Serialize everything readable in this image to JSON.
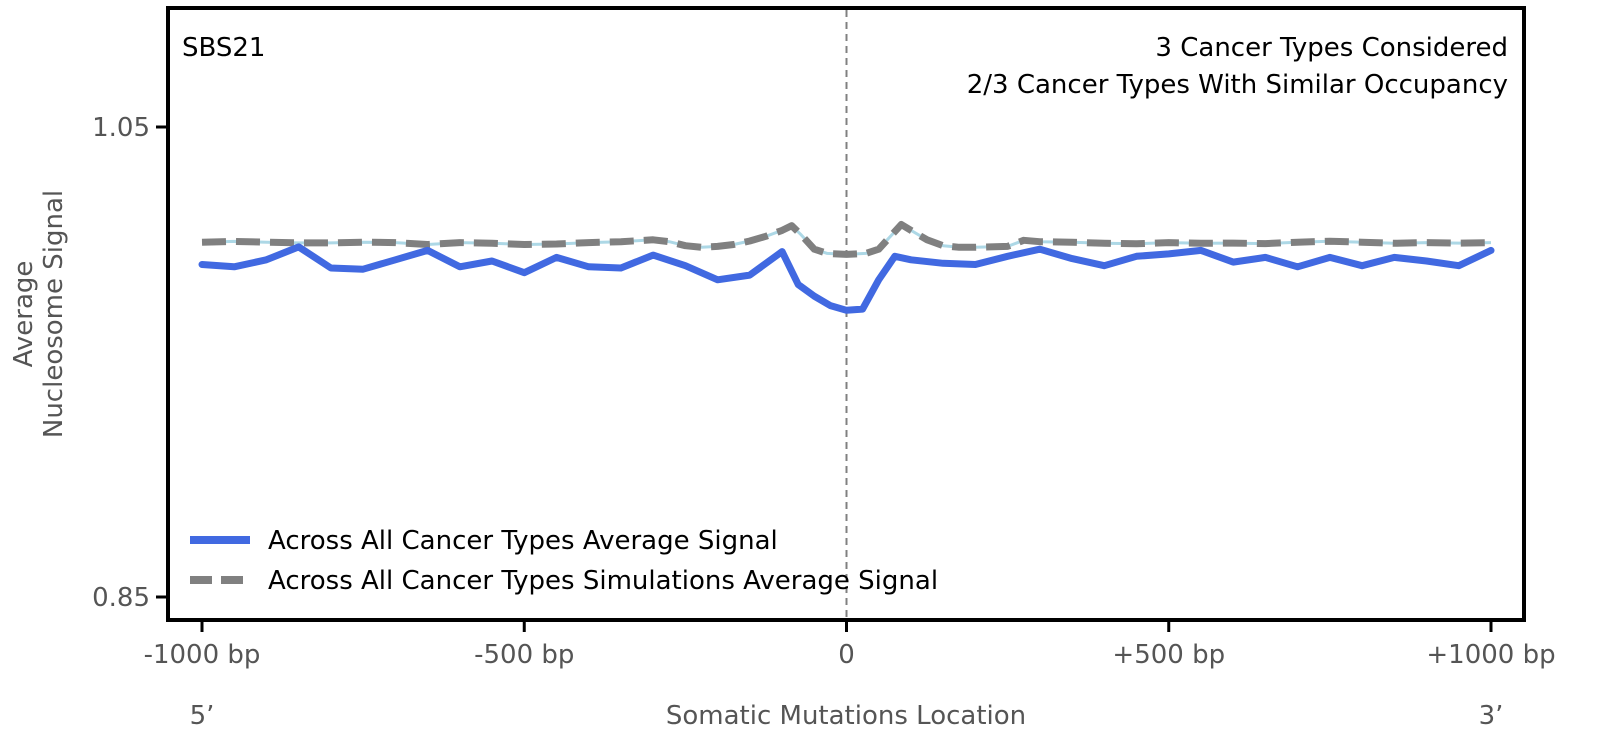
{
  "chart_data": {
    "type": "line",
    "panel_label": "SBS21",
    "annotation_line1": "3 Cancer Types Considered",
    "annotation_line2": "2/3 Cancer Types With Similar Occupancy",
    "ylabel_line1": "Average",
    "ylabel_line2": "Nucleosome Signal",
    "xlabel": "Somatic Mutations Location",
    "x_end_left": "5’",
    "x_end_right": "3’",
    "xlim": [
      -1000,
      1000
    ],
    "ylim": [
      0.85,
      1.05
    ],
    "xticks": [
      {
        "value": -1000,
        "label": "-1000 bp"
      },
      {
        "value": -500,
        "label": "-500 bp"
      },
      {
        "value": 0,
        "label": "0"
      },
      {
        "value": 500,
        "label": "+500 bp"
      },
      {
        "value": 1000,
        "label": "+1000 bp"
      }
    ],
    "yticks": [
      {
        "value": 1.05,
        "label": "1.05"
      },
      {
        "value": 0.85,
        "label": "0.85"
      }
    ],
    "legend_position": "lower-left",
    "series": [
      {
        "name": "Across All Cancer Types Average Signal",
        "color": "#4169e1",
        "style": "solid",
        "x": [
          -1000,
          -950,
          -900,
          -850,
          -800,
          -750,
          -700,
          -650,
          -600,
          -550,
          -500,
          -450,
          -400,
          -350,
          -300,
          -250,
          -200,
          -150,
          -100,
          -75,
          -50,
          -25,
          0,
          25,
          50,
          75,
          100,
          150,
          200,
          250,
          300,
          350,
          400,
          450,
          500,
          550,
          600,
          650,
          700,
          750,
          800,
          850,
          900,
          950,
          1000
        ],
        "y": [
          0.9915,
          0.9905,
          0.9935,
          0.999,
          0.99,
          0.9895,
          0.9935,
          0.9975,
          0.9905,
          0.993,
          0.988,
          0.9945,
          0.9905,
          0.99,
          0.9955,
          0.991,
          0.985,
          0.987,
          0.997,
          0.983,
          0.978,
          0.974,
          0.972,
          0.9725,
          0.985,
          0.995,
          0.9935,
          0.992,
          0.9915,
          0.995,
          0.998,
          0.994,
          0.991,
          0.995,
          0.996,
          0.9975,
          0.9925,
          0.9945,
          0.9905,
          0.9945,
          0.991,
          0.9945,
          0.993,
          0.991,
          0.9975
        ]
      },
      {
        "name": "Across All Cancer Types Simulations Average Signal",
        "color": "#808080",
        "style": "dashed",
        "x": [
          -1000,
          -950,
          -900,
          -850,
          -800,
          -750,
          -700,
          -650,
          -600,
          -550,
          -500,
          -450,
          -400,
          -350,
          -300,
          -275,
          -250,
          -225,
          -200,
          -175,
          -150,
          -125,
          -100,
          -85,
          -70,
          -50,
          -30,
          0,
          30,
          50,
          70,
          85,
          100,
          125,
          150,
          175,
          200,
          250,
          275,
          300,
          350,
          400,
          450,
          500,
          550,
          600,
          650,
          700,
          750,
          800,
          850,
          900,
          950,
          1000
        ],
        "y": [
          1.001,
          1.0013,
          1.001,
          1.0007,
          1.0007,
          1.001,
          1.0008,
          1.0,
          1.0008,
          1.0005,
          1.0,
          1.0002,
          1.0008,
          1.0012,
          1.002,
          1.0012,
          0.9995,
          0.9988,
          0.9992,
          1.0,
          1.0015,
          1.0035,
          1.006,
          1.008,
          1.004,
          0.998,
          0.9962,
          0.9958,
          0.9962,
          0.998,
          1.004,
          1.0085,
          1.006,
          1.002,
          0.9995,
          0.9988,
          0.9988,
          0.9992,
          1.0018,
          1.0012,
          1.001,
          1.0005,
          1.0003,
          1.0008,
          1.0005,
          1.0006,
          1.0004,
          1.001,
          1.0014,
          1.001,
          1.0005,
          1.0008,
          1.0006,
          1.0008
        ]
      }
    ]
  }
}
